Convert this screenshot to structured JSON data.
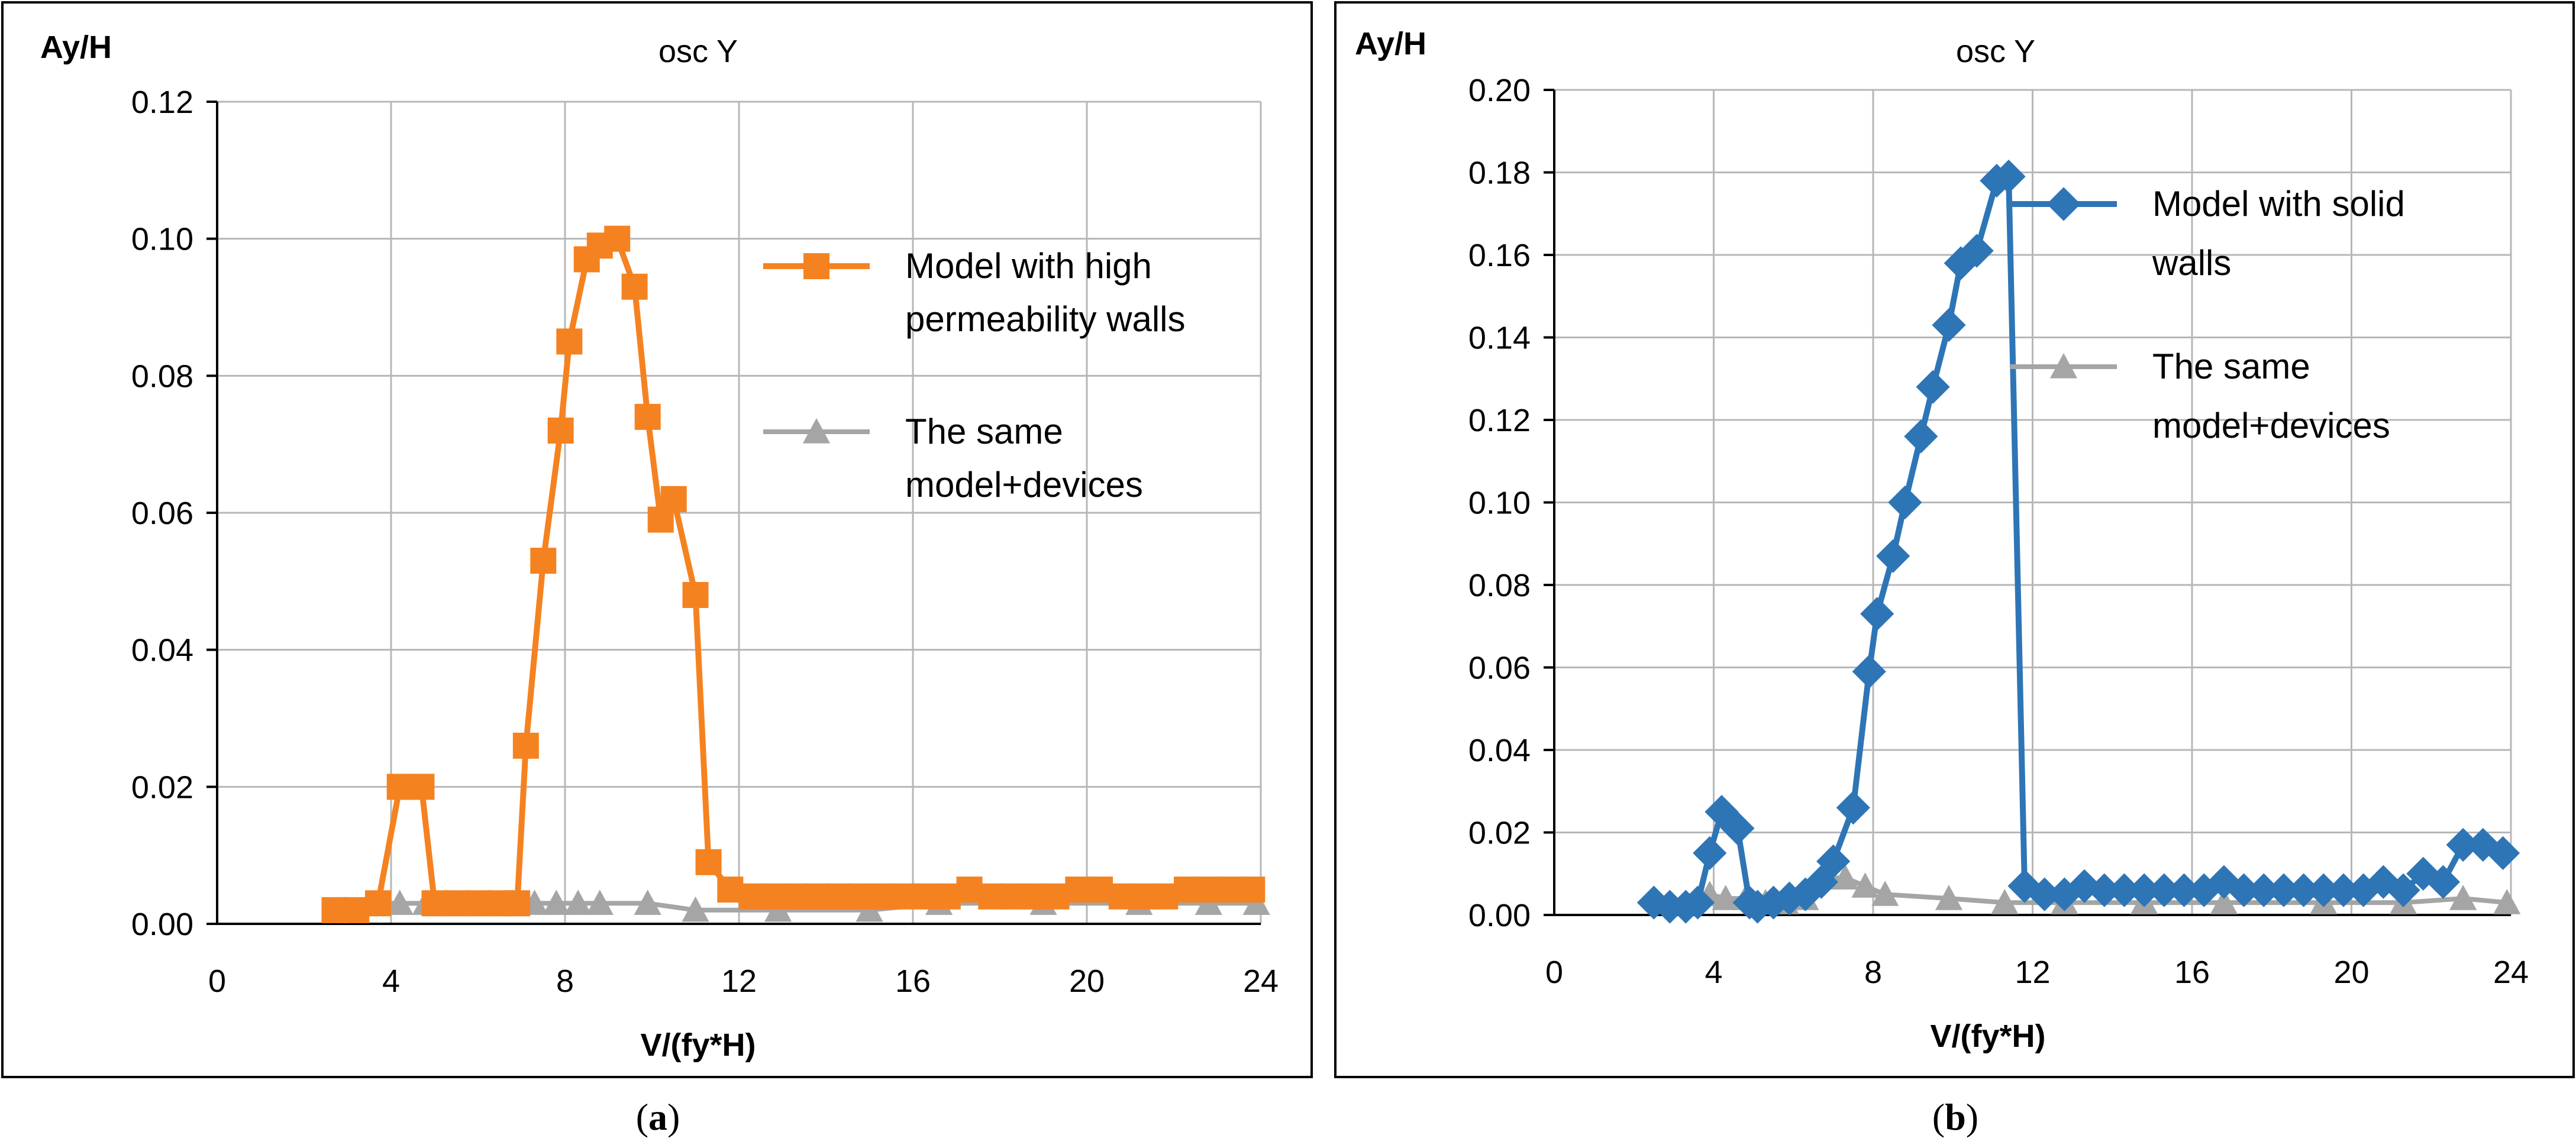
{
  "chart_data": [
    {
      "type": "line",
      "panel_label": "a",
      "title": "osc Y",
      "xlabel": "V/(fy*H)",
      "ylabel": "Ay/H",
      "xlim": [
        0,
        24
      ],
      "ylim": [
        0,
        0.12
      ],
      "xticks": [
        "0",
        "4",
        "8",
        "12",
        "16",
        "20",
        "24"
      ],
      "yticks": [
        "0.00",
        "0.02",
        "0.04",
        "0.06",
        "0.08",
        "0.10",
        "0.12"
      ],
      "legend_position": "right",
      "series": [
        {
          "name_lines": [
            "Model with high",
            "permeability walls"
          ],
          "color": "#f58220",
          "marker": "square",
          "x": [
            2.7,
            3.2,
            3.7,
            4.2,
            4.7,
            5.0,
            5.5,
            6.0,
            6.5,
            6.9,
            7.1,
            7.5,
            7.9,
            8.1,
            8.5,
            8.8,
            9.2,
            9.6,
            9.9,
            10.2,
            10.5,
            11.0,
            11.3,
            11.8,
            12.3,
            12.8,
            13.3,
            13.8,
            14.3,
            14.8,
            15.3,
            15.8,
            16.3,
            16.8,
            17.3,
            17.8,
            18.3,
            18.8,
            19.3,
            19.8,
            20.3,
            20.8,
            21.3,
            21.8,
            22.3,
            22.8,
            23.3,
            23.8
          ],
          "y": [
            0.002,
            0.002,
            0.003,
            0.02,
            0.02,
            0.003,
            0.003,
            0.003,
            0.003,
            0.003,
            0.026,
            0.053,
            0.072,
            0.085,
            0.097,
            0.099,
            0.1,
            0.093,
            0.074,
            0.059,
            0.062,
            0.048,
            0.009,
            0.005,
            0.004,
            0.004,
            0.004,
            0.004,
            0.004,
            0.004,
            0.004,
            0.004,
            0.004,
            0.004,
            0.005,
            0.004,
            0.004,
            0.004,
            0.004,
            0.005,
            0.005,
            0.004,
            0.004,
            0.004,
            0.005,
            0.005,
            0.005,
            0.005
          ]
        },
        {
          "name_lines": [
            "The same",
            "model+devices"
          ],
          "color": "#a5a5a5",
          "marker": "triangle",
          "x": [
            3.7,
            4.2,
            4.8,
            5.3,
            5.8,
            6.3,
            6.8,
            7.3,
            7.8,
            8.3,
            8.8,
            9.9,
            11.0,
            12.9,
            15.0,
            16.6,
            19.0,
            21.2,
            22.8,
            23.9
          ],
          "y": [
            0.003,
            0.003,
            0.003,
            0.003,
            0.003,
            0.003,
            0.003,
            0.003,
            0.003,
            0.003,
            0.003,
            0.003,
            0.002,
            0.002,
            0.002,
            0.003,
            0.003,
            0.003,
            0.003,
            0.003
          ]
        }
      ]
    },
    {
      "type": "line",
      "panel_label": "b",
      "title": "osc Y",
      "xlabel": "V/(fy*H)",
      "ylabel": "Ay/H",
      "xlim": [
        0,
        24
      ],
      "ylim": [
        0,
        0.2
      ],
      "xticks": [
        "0",
        "4",
        "8",
        "12",
        "16",
        "20",
        "24"
      ],
      "yticks": [
        "0.00",
        "0.02",
        "0.04",
        "0.06",
        "0.08",
        "0.10",
        "0.12",
        "0.14",
        "0.16",
        "0.18",
        "0.20"
      ],
      "legend_position": "right",
      "series": [
        {
          "name_lines": [
            "Model with solid",
            "walls"
          ],
          "color": "#2e75b6",
          "marker": "diamond",
          "x": [
            2.5,
            2.9,
            3.3,
            3.6,
            3.9,
            4.2,
            4.6,
            4.9,
            5.1,
            5.5,
            5.9,
            6.3,
            6.7,
            7.0,
            7.5,
            7.9,
            8.1,
            8.5,
            8.8,
            9.2,
            9.5,
            9.9,
            10.2,
            10.6,
            11.1,
            11.4,
            11.8,
            12.3,
            12.8,
            13.3,
            13.8,
            14.3,
            14.8,
            15.3,
            15.8,
            16.3,
            16.8,
            17.3,
            17.8,
            18.3,
            18.8,
            19.3,
            19.8,
            20.3,
            20.8,
            21.3,
            21.8,
            22.3,
            22.8,
            23.3,
            23.8
          ],
          "y": [
            0.003,
            0.002,
            0.002,
            0.003,
            0.015,
            0.025,
            0.021,
            0.003,
            0.002,
            0.003,
            0.004,
            0.005,
            0.008,
            0.013,
            0.026,
            0.059,
            0.073,
            0.087,
            0.1,
            0.116,
            0.128,
            0.143,
            0.158,
            0.161,
            0.178,
            0.179,
            0.007,
            0.005,
            0.005,
            0.007,
            0.006,
            0.006,
            0.006,
            0.006,
            0.006,
            0.006,
            0.008,
            0.006,
            0.006,
            0.006,
            0.006,
            0.006,
            0.006,
            0.006,
            0.008,
            0.006,
            0.01,
            0.008,
            0.017,
            0.017,
            0.015
          ]
        },
        {
          "name_lines": [
            "The same",
            "model+devices"
          ],
          "color": "#a5a5a5",
          "marker": "triangle",
          "x": [
            3.9,
            4.3,
            4.8,
            5.3,
            5.8,
            6.3,
            6.9,
            7.3,
            7.8,
            8.3,
            9.9,
            11.3,
            12.8,
            14.8,
            16.8,
            19.3,
            21.3,
            22.8,
            23.9
          ],
          "y": [
            0.005,
            0.004,
            0.004,
            0.003,
            0.003,
            0.004,
            0.009,
            0.009,
            0.007,
            0.005,
            0.004,
            0.003,
            0.003,
            0.003,
            0.003,
            0.003,
            0.003,
            0.004,
            0.003
          ]
        }
      ]
    }
  ],
  "captions": {
    "a": {
      "open": "(",
      "letter": "a",
      "close": ")"
    },
    "b": {
      "open": "(",
      "letter": "b",
      "close": ")"
    }
  }
}
